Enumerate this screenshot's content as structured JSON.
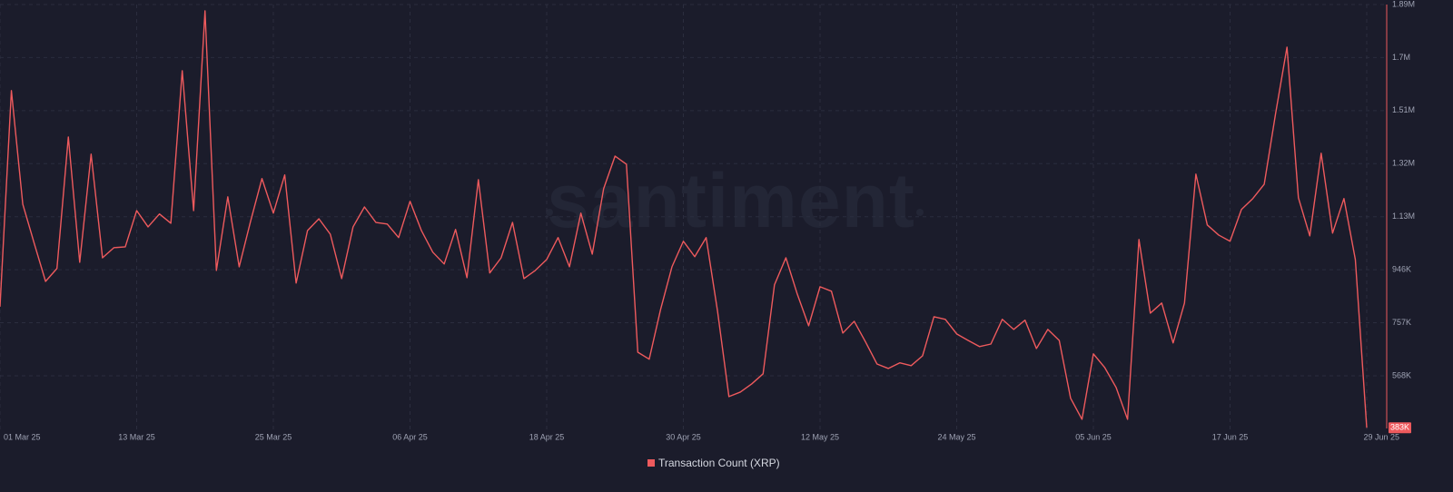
{
  "chart_data": {
    "type": "line",
    "watermark": "santiment",
    "categories": [
      "01 Mar 25",
      null,
      null,
      null,
      null,
      null,
      null,
      null,
      null,
      null,
      null,
      null,
      "13 Mar 25",
      null,
      null,
      null,
      null,
      null,
      null,
      null,
      null,
      null,
      null,
      null,
      "25 Mar 25",
      null,
      null,
      null,
      null,
      null,
      null,
      null,
      null,
      null,
      null,
      null,
      "06 Apr 25",
      null,
      null,
      null,
      null,
      null,
      null,
      null,
      null,
      null,
      null,
      null,
      "18 Apr 25",
      null,
      null,
      null,
      null,
      null,
      null,
      null,
      null,
      null,
      null,
      null,
      "30 Apr 25",
      null,
      null,
      null,
      null,
      null,
      null,
      null,
      null,
      null,
      null,
      null,
      "12 May 25",
      null,
      null,
      null,
      null,
      null,
      null,
      null,
      null,
      null,
      null,
      null,
      "24 May 25",
      null,
      null,
      null,
      null,
      null,
      null,
      null,
      null,
      null,
      null,
      null,
      "05 Jun 25",
      null,
      null,
      null,
      null,
      null,
      null,
      null,
      null,
      null,
      null,
      null,
      "17 Jun 25",
      null,
      null,
      null,
      null,
      null,
      null,
      null,
      null,
      null,
      null,
      null,
      "29 Jun 25"
    ],
    "series": [
      {
        "name": "Transaction Count (XRP)",
        "color": "#ee5a5d",
        "values": [
          814000,
          1583000,
          1179000,
          1040000,
          904000,
          950000,
          1418000,
          972000,
          1357000,
          988000,
          1024000,
          1027000,
          1156000,
          1098000,
          1144000,
          1111000,
          1654000,
          1156000,
          1867000,
          943000,
          1205000,
          956000,
          1118000,
          1270000,
          1147000,
          1283000,
          898000,
          1085000,
          1127000,
          1072000,
          914000,
          1098000,
          1169000,
          1114000,
          1108000,
          1060000,
          1189000,
          1085000,
          1008000,
          966000,
          1089000,
          917000,
          1266000,
          934000,
          988000,
          1114000,
          914000,
          943000,
          982000,
          1060000,
          956000,
          1147000,
          1001000,
          1234000,
          1350000,
          1321000,
          652000,
          627000,
          804000,
          956000,
          1047000,
          992000,
          1060000,
          798000,
          494000,
          510000,
          539000,
          575000,
          892000,
          988000,
          859000,
          746000,
          885000,
          869000,
          720000,
          762000,
          688000,
          610000,
          594000,
          614000,
          604000,
          639000,
          778000,
          769000,
          717000,
          694000,
          672000,
          681000,
          769000,
          733000,
          766000,
          665000,
          733000,
          694000,
          488000,
          413000,
          646000,
          597000,
          526000,
          413000,
          1053000,
          791000,
          827000,
          685000,
          827000,
          1286000,
          1105000,
          1069000,
          1047000,
          1160000,
          1199000,
          1250000,
          1502000,
          1738000,
          1202000,
          1066000,
          1360000,
          1076000,
          1199000,
          982000,
          383000
        ],
        "value_labels": [
          null,
          null,
          null,
          null,
          null,
          null,
          null,
          null,
          null,
          null,
          null,
          null,
          null,
          null,
          null,
          null,
          null,
          null,
          null,
          null,
          null,
          null,
          null,
          null,
          null,
          null,
          null,
          null,
          null,
          null,
          null,
          null,
          null,
          null,
          null,
          null,
          null,
          null,
          null,
          null,
          null,
          null,
          null,
          null,
          null,
          null,
          null,
          null,
          null,
          null,
          null,
          null,
          null,
          null,
          null,
          null,
          null,
          null,
          null,
          null,
          null,
          null,
          null,
          null,
          null,
          null,
          null,
          null,
          null,
          null,
          null,
          null,
          null,
          null,
          null,
          null,
          null,
          null,
          null,
          null,
          null,
          null,
          null,
          null,
          null,
          null,
          null,
          null,
          null,
          null,
          null,
          null,
          null,
          null,
          null,
          null,
          null,
          null,
          null,
          null,
          null,
          null,
          null,
          null,
          null,
          null,
          null,
          null,
          null,
          null,
          null,
          null,
          null,
          null,
          null,
          null,
          null,
          null,
          null,
          null,
          "383K"
        ]
      }
    ],
    "ylim": [
      374000,
      1889600
    ],
    "yticks": [
      {
        "value": 568000,
        "label": "568K"
      },
      {
        "value": 756800,
        "label": "757K"
      },
      {
        "value": 945600,
        "label": "946K"
      },
      {
        "value": 1134400,
        "label": "1.13M"
      },
      {
        "value": 1323200,
        "label": "1.32M"
      },
      {
        "value": 1512000,
        "label": "1.51M"
      },
      {
        "value": 1700800,
        "label": "1.7M"
      },
      {
        "value": 1889600,
        "label": "1.89M"
      }
    ],
    "grid": true,
    "legend": "bottom"
  }
}
